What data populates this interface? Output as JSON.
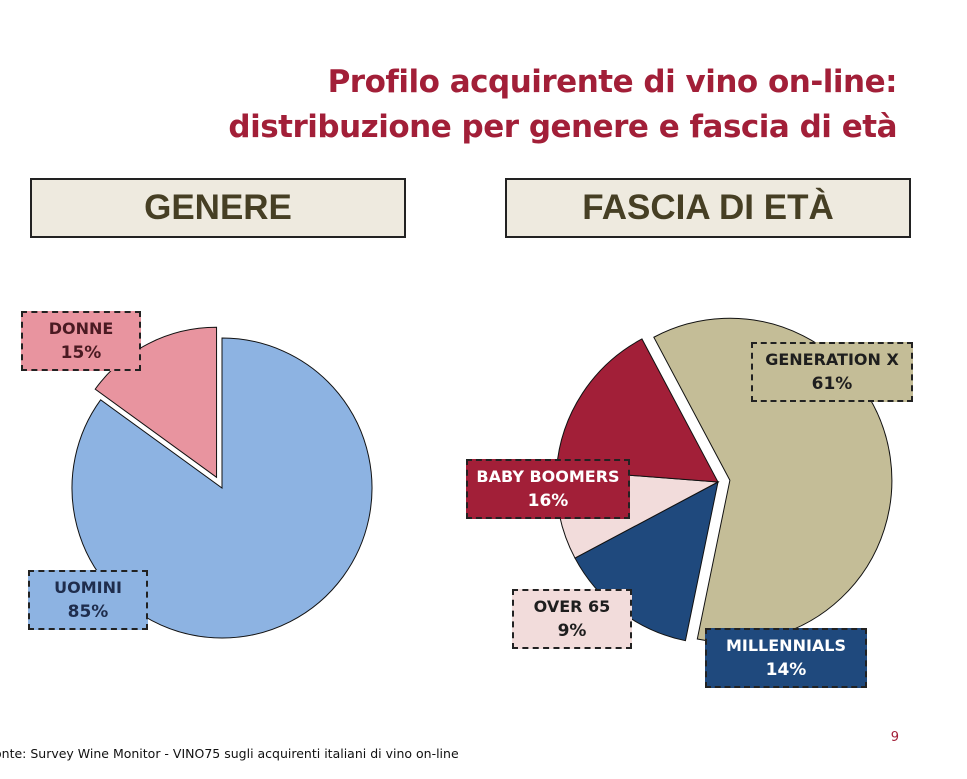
{
  "title": {
    "line1": "Profilo acquirente di vino on-line:",
    "line2": "distribuzione per genere e fascia di età"
  },
  "sections": {
    "genere": "GENERE",
    "eta": "FASCIA DI ETÀ"
  },
  "footer": "onte: Survey Wine Monitor - VINO75 sugli acquirenti italiani di vino on-line",
  "page_number": "9",
  "chart_data": [
    {
      "type": "pie",
      "title": "GENERE",
      "slices": [
        {
          "label": "UOMINI",
          "value": 85,
          "display": "85%",
          "color": "#8db3e2",
          "label_bg": "#8db3e2",
          "label_fg": "#1f2d4d"
        },
        {
          "label": "DONNE",
          "value": 15,
          "display": "15%",
          "color": "#e8949f",
          "label_bg": "#e8949f",
          "label_fg": "#4a1a22",
          "exploded": true
        }
      ]
    },
    {
      "type": "pie",
      "title": "FASCIA DI ETÀ",
      "slices": [
        {
          "label": "GENERATION X",
          "value": 61,
          "display": "61%",
          "color": "#c4bd97",
          "label_bg": "#c4bd97",
          "label_fg": "#1e1e1e",
          "exploded": true
        },
        {
          "label": "MILLENNIALS",
          "value": 14,
          "display": "14%",
          "color": "#1f497d",
          "label_bg": "#1f497d",
          "label_fg": "#ffffff"
        },
        {
          "label": "OVER 65",
          "value": 9,
          "display": "9%",
          "color": "#f2dcdb",
          "label_bg": "#f2dcdb",
          "label_fg": "#1e1e1e"
        },
        {
          "label": "BABY BOOMERS",
          "value": 16,
          "display": "16%",
          "color": "#a21f38",
          "label_bg": "#a21f38",
          "label_fg": "#ffffff"
        }
      ]
    }
  ]
}
